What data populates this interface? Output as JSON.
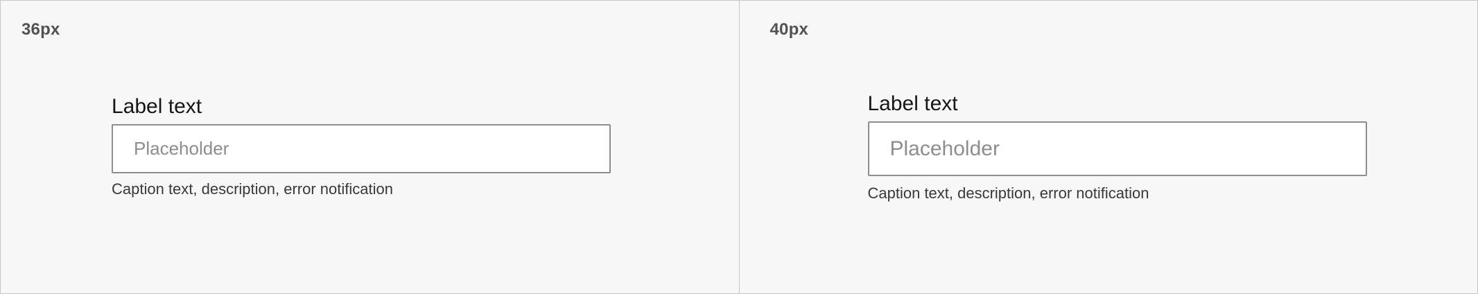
{
  "variants": [
    {
      "size_label": "36px",
      "label_text": "Label text",
      "placeholder": "Placeholder",
      "input_value": "",
      "caption": "Caption text, description, error notification"
    },
    {
      "size_label": "40px",
      "label_text": "Label text",
      "placeholder": "Placeholder",
      "input_value": "",
      "caption": "Caption text, description, error notification"
    }
  ],
  "colors": {
    "canvas_background": "#f7f7f7",
    "divider": "#c6c6c6",
    "input_border": "#8d8d8d",
    "placeholder_text": "#8d8d8d",
    "label_text": "#161616",
    "size_tag_text": "#525252"
  }
}
